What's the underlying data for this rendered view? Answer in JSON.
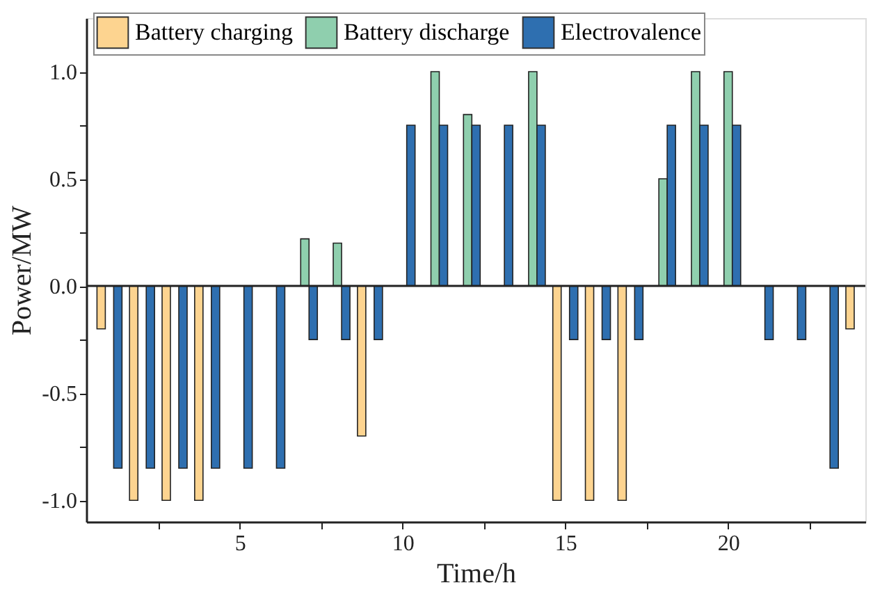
{
  "chart_data": {
    "type": "bar",
    "xlabel": "Time/h",
    "ylabel": "Power/MW",
    "x": [
      1,
      2,
      3,
      4,
      5,
      6,
      7,
      8,
      9,
      10,
      11,
      12,
      13,
      14,
      15,
      16,
      17,
      18,
      19,
      20,
      21,
      22,
      23,
      24
    ],
    "series": [
      {
        "name": "Battery charging",
        "color": "#fdd490",
        "values": [
          -0.2,
          -1,
          -1,
          -1,
          null,
          null,
          null,
          null,
          -0.7,
          null,
          null,
          null,
          null,
          null,
          -1,
          -1,
          -1,
          null,
          null,
          null,
          null,
          null,
          null,
          -0.2
        ]
      },
      {
        "name": "Battery discharge",
        "color": "#8fcfae",
        "values": [
          null,
          null,
          null,
          null,
          null,
          null,
          0.22,
          0.2,
          null,
          null,
          1.0,
          0.8,
          null,
          1.0,
          null,
          null,
          null,
          0.5,
          1.0,
          1.0,
          null,
          null,
          null,
          null
        ]
      },
      {
        "name": "Electrovalence",
        "color": "#2e6fb0",
        "values": [
          -0.85,
          -0.85,
          -0.85,
          -0.85,
          -0.85,
          -0.85,
          -0.25,
          -0.25,
          -0.25,
          0.75,
          0.75,
          0.75,
          0.75,
          0.75,
          -0.25,
          -0.25,
          -0.25,
          0.75,
          0.75,
          0.75,
          -0.25,
          -0.25,
          -0.85,
          null
        ]
      }
    ],
    "xlim": [
      0.5,
      24
    ],
    "xticks": [
      {
        "value": 2.5,
        "label": null
      },
      5,
      {
        "value": 7.5,
        "label": null
      },
      10,
      {
        "value": 12.5,
        "label": null
      },
      15,
      {
        "value": 17.5,
        "label": null
      },
      20,
      {
        "value": 22.5,
        "label": null
      }
    ],
    "ylim": [
      -1.1,
      1.25
    ],
    "yticks": [
      {
        "value": -1.0,
        "label": "-1.0"
      },
      {
        "value": -0.75,
        "label": null
      },
      -0.5,
      {
        "value": -0.25,
        "label": null
      },
      {
        "value": 0.0,
        "label": "0.0"
      },
      {
        "value": 0.25,
        "label": null
      },
      0.5,
      {
        "value": 0.75,
        "label": null
      },
      {
        "value": 1.0,
        "label": "1.0"
      }
    ],
    "ref_lines": [
      {
        "axis": "y",
        "value": 0
      }
    ],
    "legend": "top",
    "grid": false
  }
}
